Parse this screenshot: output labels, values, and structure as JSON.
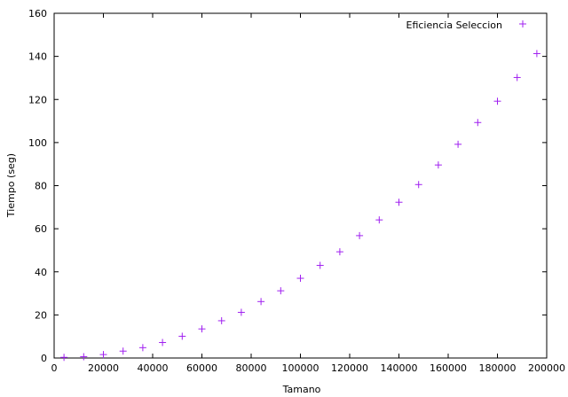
{
  "chart_data": {
    "type": "scatter",
    "xlabel": "Tamano",
    "ylabel": "Tiempo (seg)",
    "xlim": [
      0,
      200000
    ],
    "ylim": [
      0,
      160
    ],
    "xticks": [
      0,
      20000,
      40000,
      60000,
      80000,
      100000,
      120000,
      140000,
      160000,
      180000,
      200000
    ],
    "yticks": [
      0,
      20,
      40,
      60,
      80,
      100,
      120,
      140,
      160
    ],
    "legend_position": "top-right",
    "grid": false,
    "marker": "plus",
    "series": [
      {
        "name": "Eficiencia Seleccion",
        "color": "#a020f0",
        "x": [
          4000,
          12000,
          20000,
          28000,
          36000,
          44000,
          52000,
          60000,
          68000,
          76000,
          84000,
          92000,
          100000,
          108000,
          116000,
          124000,
          132000,
          140000,
          148000,
          156000,
          164000,
          172000,
          180000,
          188000,
          196000
        ],
        "y": [
          0.3,
          0.6,
          1.6,
          3.2,
          4.8,
          7.2,
          10.1,
          13.5,
          17.3,
          21.2,
          26.2,
          31.2,
          37.0,
          43.0,
          49.3,
          56.8,
          64.1,
          72.3,
          80.5,
          89.6,
          99.2,
          109.3,
          119.2,
          130.2,
          141.3
        ]
      }
    ]
  }
}
